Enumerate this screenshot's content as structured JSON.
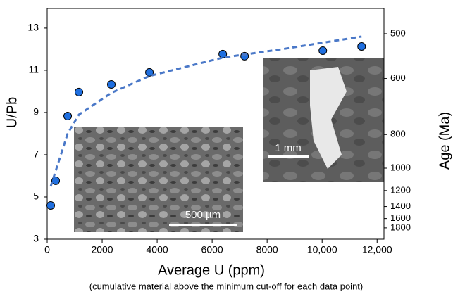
{
  "chart_data": {
    "type": "scatter",
    "xlabel": "Average U (ppm)",
    "subtitle": "(cumulative material above the minimum cut-off for each data point)",
    "ylabel": "U/Pb",
    "y2label": "Age (Ma)",
    "xlim": [
      0,
      12250
    ],
    "ylim": [
      3,
      13.93
    ],
    "xticks": [
      0,
      2000,
      4000,
      6000,
      8000,
      {
        "value": 10000,
        "label": "10,000"
      },
      {
        "value": 12000,
        "label": "12,000"
      }
    ],
    "yticks": [
      3,
      5,
      7,
      9,
      11,
      13
    ],
    "y2scale": "reciprocal",
    "y2lim": [
      2122,
      457
    ],
    "y2ticks": [
      500,
      600,
      800,
      1000,
      1200,
      1400,
      1600,
      1800
    ],
    "series": [
      {
        "color": "#1f6fe0",
        "x": [
          128,
          308,
          744,
          1154,
          2333,
          3718,
          6385,
          7180,
          10026,
          11436
        ],
        "values": [
          4.6,
          5.77,
          8.83,
          9.97,
          10.33,
          10.9,
          11.77,
          11.67,
          11.93,
          12.13
        ]
      },
      {
        "color": "#4a78c8",
        "style": "dashed",
        "x": [
          128,
          744,
          1154,
          2333,
          3718,
          6385,
          8538,
          11436
        ],
        "values": [
          5.5,
          8.0,
          8.9,
          9.93,
          10.73,
          11.6,
          12.0,
          12.6
        ]
      }
    ],
    "insets": [
      "500 µm",
      "1 mm"
    ]
  }
}
